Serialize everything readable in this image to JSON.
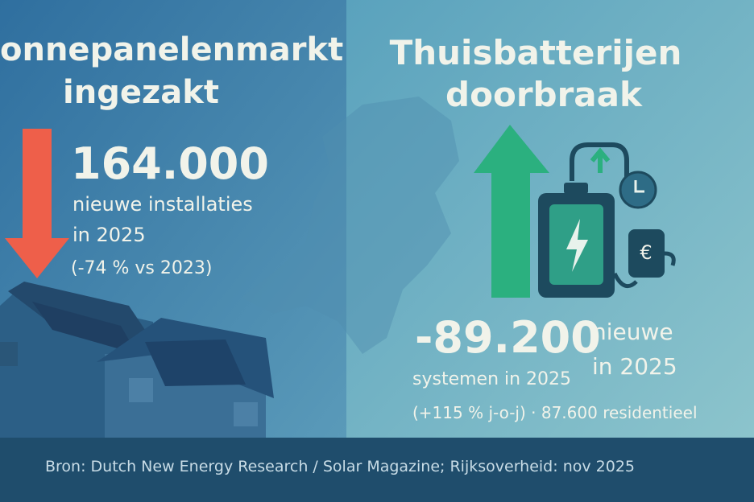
{
  "left": {
    "title": [
      "onnepanelenmarkt",
      "ingezakt"
    ],
    "headline": "164.000",
    "lines": [
      "nieuwe installaties",
      "in 2025",
      "(-74 % vs 2023)"
    ]
  },
  "right": {
    "title": [
      "Thuisbatterijen",
      "doorbraak"
    ],
    "headline": "-89.200",
    "side_lines": [
      "nieuwe",
      "in 2025"
    ],
    "lines": [
      "systemen in 2025",
      "(+115 % j-o-j) · 87.600 residentieel"
    ]
  },
  "footer": {
    "source": "Bron: Dutch New Energy Research / Solar Magazine; Rijksoverheid: nov 2025"
  }
}
